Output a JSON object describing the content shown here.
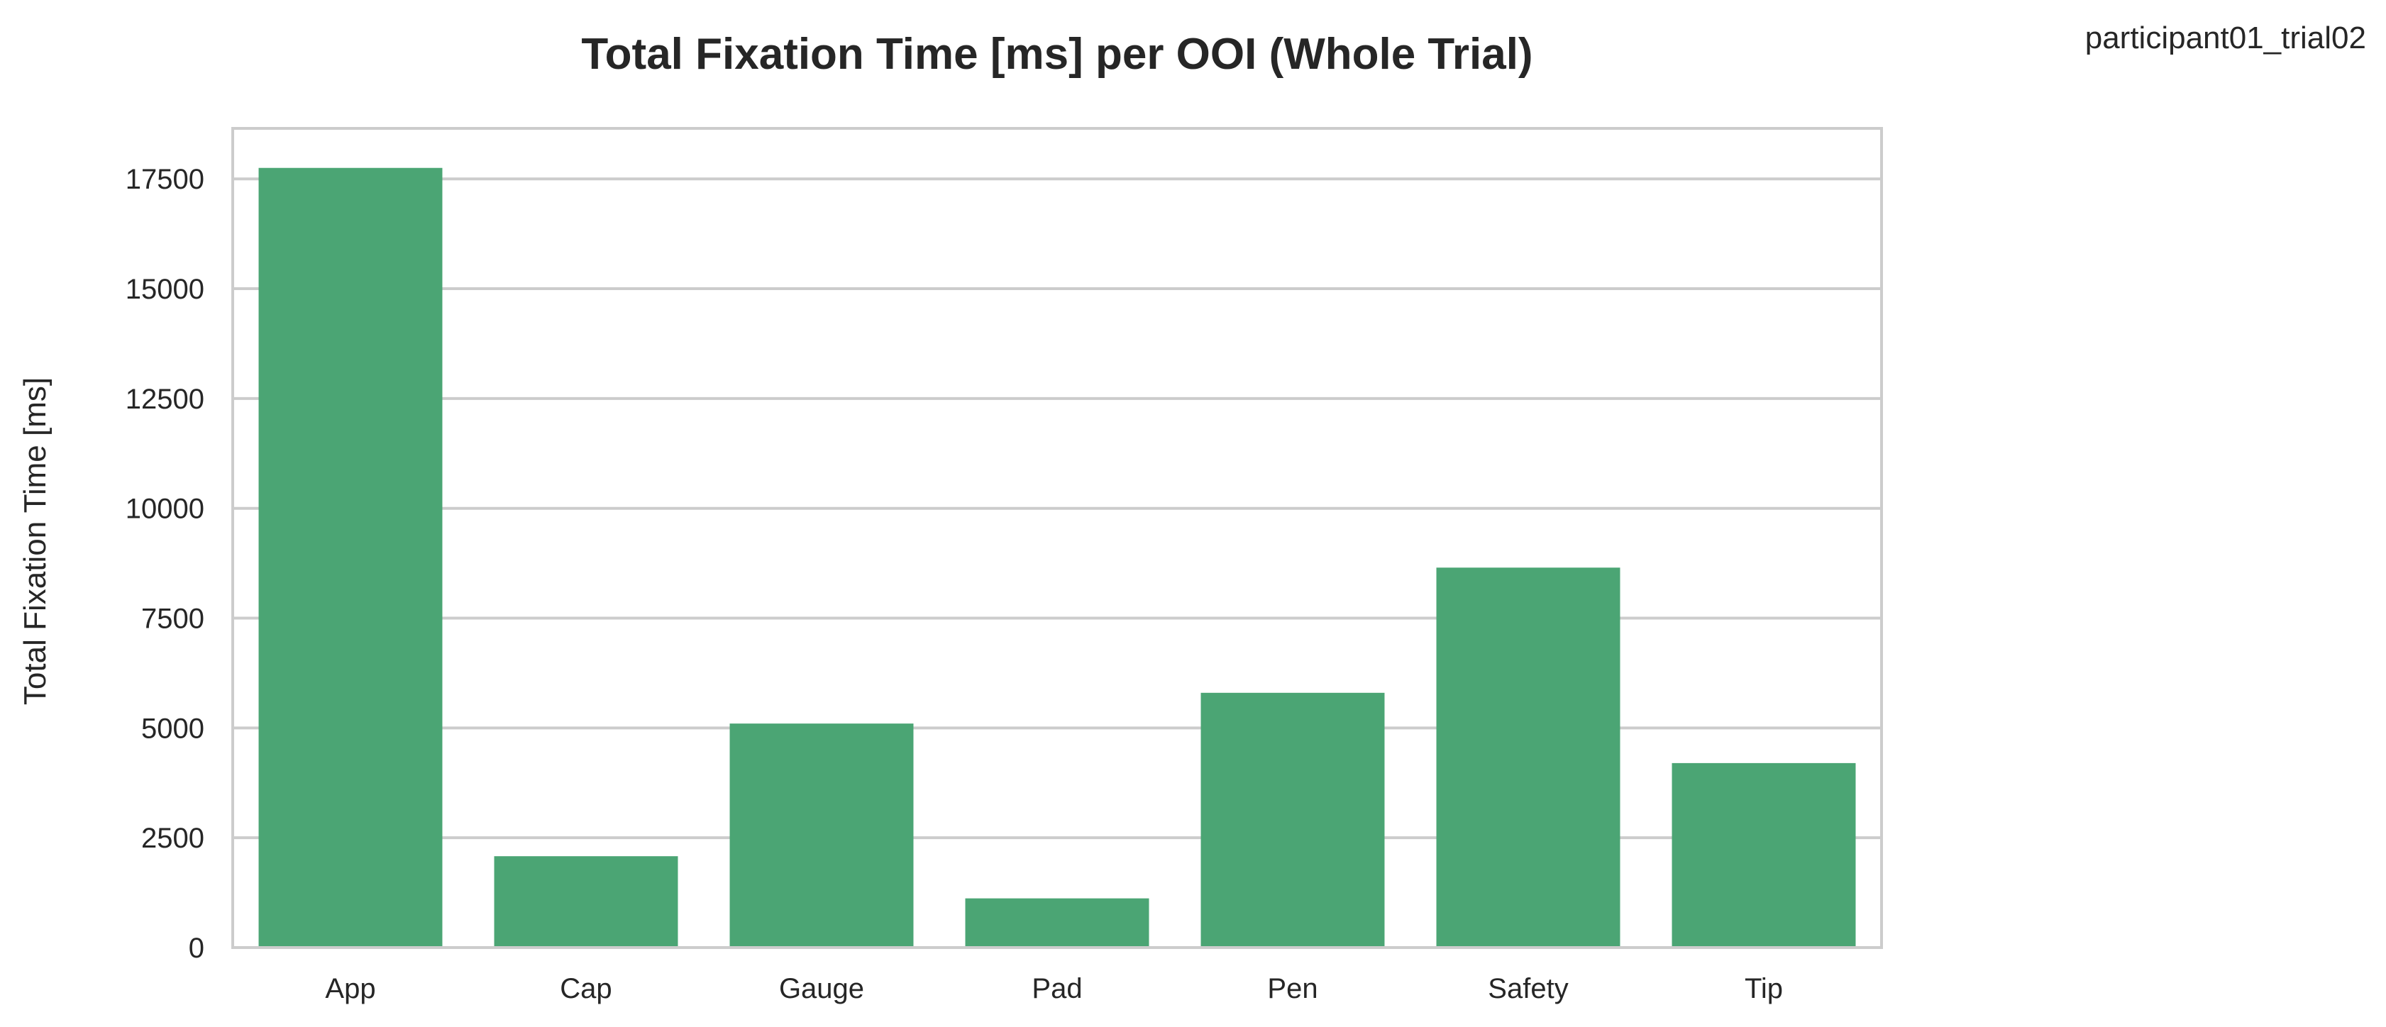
{
  "corner_label": "participant01_trial02",
  "chart_data": {
    "type": "bar",
    "title": "Total Fixation Time [ms] per OOI (Whole Trial)",
    "xlabel": "",
    "ylabel": "Total Fixation Time [ms]",
    "categories": [
      "App",
      "Cap",
      "Gauge",
      "Pad",
      "Pen",
      "Safety",
      "Tip"
    ],
    "values": [
      17750,
      2080,
      5100,
      1120,
      5800,
      8650,
      4200
    ],
    "ylim": [
      0,
      18650
    ],
    "yticks": [
      0,
      2500,
      5000,
      7500,
      10000,
      12500,
      15000,
      17500
    ],
    "ytick_labels": [
      "0",
      "2500",
      "5000",
      "7500",
      "10000",
      "12500",
      "15000",
      "17500"
    ],
    "bar_color": "#4ba574",
    "grid": true,
    "legend": "none"
  }
}
